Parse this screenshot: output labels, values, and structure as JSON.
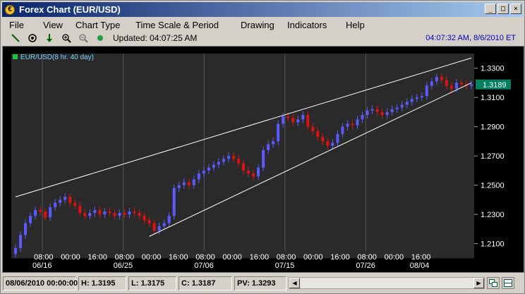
{
  "window": {
    "title": "Forex Chart (EUR/USD)",
    "icon": "forex-icon",
    "minimize": "_",
    "maximize": "□",
    "close": "×"
  },
  "menu": {
    "items": [
      "File",
      "View",
      "Chart Type",
      "Time Scale & Period",
      "Drawing",
      "Indicators",
      "Help"
    ]
  },
  "toolbar": {
    "tools": [
      "line-tool-icon",
      "crosshair-icon",
      "down-arrow-icon",
      "zoom-in-icon",
      "zoom-out-icon",
      "status-dot-icon"
    ],
    "updated": "Updated: 04:07:25 AM",
    "clock": "04:07:32 AM, 8/6/2010 ET"
  },
  "chart": {
    "legend": "EUR/USD",
    "legend_period": "(8 hr. 40 day)",
    "last_price": "1.3189",
    "colors": {
      "up": "#5a5aff",
      "down": "#e01010",
      "bg": "#000000",
      "band": "#2a2a2a",
      "price_tag": "#008060"
    }
  },
  "chart_data": {
    "type": "candlestick",
    "title": "EUR/USD",
    "ylim": [
      1.205,
      1.34
    ],
    "y_ticks": [
      "1.3300",
      "1.3100",
      "1.2900",
      "1.2700",
      "1.2500",
      "1.2300",
      "1.2100"
    ],
    "y_tick_values": [
      1.33,
      1.31,
      1.29,
      1.27,
      1.25,
      1.23,
      1.21
    ],
    "x_ticks": [
      "08:00",
      "00:00",
      "16:00",
      "08:00",
      "00:00",
      "16:00",
      "08:00",
      "00:00",
      "16:00",
      "08:00",
      "00:00",
      "16:00",
      "08:00",
      "00:00",
      "16:00"
    ],
    "x_dates": [
      "06/16",
      "",
      "",
      "06/25",
      "",
      "",
      "07/06",
      "",
      "",
      "07/15",
      "",
      "",
      "07/26",
      "",
      "08/04"
    ],
    "close_series": [
      1.207,
      1.216,
      1.224,
      1.229,
      1.233,
      1.232,
      1.228,
      1.235,
      1.238,
      1.24,
      1.242,
      1.238,
      1.236,
      1.231,
      1.229,
      1.231,
      1.233,
      1.23,
      1.232,
      1.231,
      1.229,
      1.231,
      1.23,
      1.232,
      1.231,
      1.229,
      1.226,
      1.224,
      1.219,
      1.222,
      1.224,
      1.229,
      1.248,
      1.25,
      1.252,
      1.25,
      1.254,
      1.258,
      1.26,
      1.262,
      1.264,
      1.266,
      1.268,
      1.27,
      1.268,
      1.265,
      1.26,
      1.258,
      1.256,
      1.262,
      1.274,
      1.278,
      1.28,
      1.292,
      1.297,
      1.296,
      1.293,
      1.295,
      1.298,
      1.29,
      1.287,
      1.283,
      1.28,
      1.277,
      1.279,
      1.285,
      1.29,
      1.292,
      1.291,
      1.295,
      1.298,
      1.301,
      1.302,
      1.3,
      1.298,
      1.3,
      1.302,
      1.303,
      1.305,
      1.307,
      1.309,
      1.31,
      1.311,
      1.318,
      1.321,
      1.324,
      1.322,
      1.318,
      1.316,
      1.32,
      1.319,
      1.318,
      1.3189
    ],
    "trendlines": [
      {
        "from": [
          0,
          1.242
        ],
        "to": [
          92,
          1.337
        ]
      },
      {
        "from": [
          27,
          1.215
        ],
        "to": [
          92,
          1.32
        ]
      }
    ]
  },
  "status": {
    "date": "08/06/2010 00:00:00",
    "high": "H: 1.3195",
    "low": "L: 1.3175",
    "close": "C: 1.3187",
    "pv": "PV: 1.3293"
  }
}
